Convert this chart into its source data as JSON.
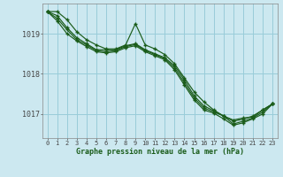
{
  "title": "Graphe pression niveau de la mer (hPa)",
  "bg_color": "#cce8f0",
  "grid_color": "#99ccd9",
  "line_color": "#1a5c1a",
  "text_color": "#1a5c1a",
  "xlim": [
    -0.5,
    23.5
  ],
  "ylim": [
    1016.4,
    1019.75
  ],
  "yticks": [
    1017,
    1018,
    1019
  ],
  "xticks": [
    0,
    1,
    2,
    3,
    4,
    5,
    6,
    7,
    8,
    9,
    10,
    11,
    12,
    13,
    14,
    15,
    16,
    17,
    18,
    19,
    20,
    21,
    22,
    23
  ],
  "lines": [
    [
      1019.55,
      1019.55,
      1019.35,
      1019.05,
      1018.85,
      1018.72,
      1018.62,
      1018.62,
      1018.72,
      1019.25,
      1018.72,
      1018.62,
      1018.48,
      1018.25,
      1017.9,
      1017.55,
      1017.3,
      1017.1,
      1016.95,
      1016.85,
      1016.9,
      1016.92,
      1017.1,
      1017.25
    ],
    [
      1019.55,
      1019.45,
      1019.15,
      1018.9,
      1018.75,
      1018.6,
      1018.6,
      1018.6,
      1018.7,
      1018.75,
      1018.6,
      1018.5,
      1018.4,
      1018.2,
      1017.85,
      1017.45,
      1017.2,
      1017.08,
      1016.95,
      1016.82,
      1016.87,
      1016.95,
      1017.1,
      1017.25
    ],
    [
      1019.55,
      1019.38,
      1019.1,
      1018.85,
      1018.72,
      1018.58,
      1018.55,
      1018.58,
      1018.68,
      1018.73,
      1018.58,
      1018.48,
      1018.38,
      1018.15,
      1017.78,
      1017.4,
      1017.15,
      1017.05,
      1016.95,
      1016.75,
      1016.82,
      1016.9,
      1017.05,
      1017.25
    ],
    [
      1019.55,
      1019.32,
      1019.0,
      1018.82,
      1018.68,
      1018.55,
      1018.52,
      1018.55,
      1018.65,
      1018.7,
      1018.55,
      1018.45,
      1018.35,
      1018.1,
      1017.72,
      1017.35,
      1017.1,
      1017.02,
      1016.88,
      1016.72,
      1016.78,
      1016.88,
      1017.0,
      1017.25
    ]
  ]
}
